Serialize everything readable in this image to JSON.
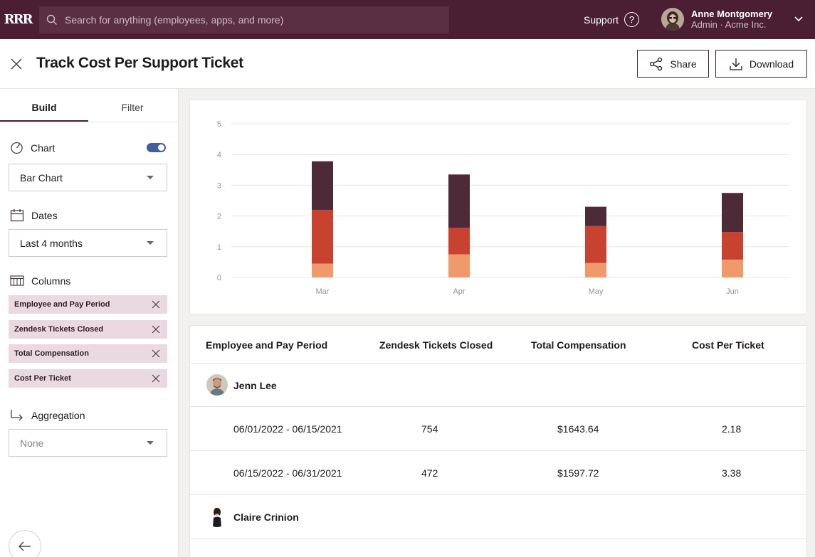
{
  "topbar": {
    "logo": "RRR",
    "search_placeholder": "Search for anything (employees, apps, and more)",
    "support_label": "Support",
    "help_icon": "?",
    "user_name": "Anne Montgomery",
    "user_role": "Admin · Acme Inc."
  },
  "header": {
    "title": "Track Cost Per Support Ticket",
    "share_label": "Share",
    "download_label": "Download"
  },
  "sidebar": {
    "tabs": [
      {
        "label": "Build"
      },
      {
        "label": "Filter"
      }
    ],
    "chart_label": "Chart",
    "chart_toggle_on": true,
    "chart_type": "Bar Chart",
    "dates_label": "Dates",
    "dates_value": "Last 4 months",
    "columns_label": "Columns",
    "columns": [
      {
        "label": "Employee and Pay Period"
      },
      {
        "label": "Zendesk Tickets Closed"
      },
      {
        "label": "Total Compensation"
      },
      {
        "label": "Cost Per Ticket"
      }
    ],
    "aggregation_label": "Aggregation",
    "aggregation_value": "None"
  },
  "colors": {
    "brand": "#4a1f34",
    "series_light": "#f0996a",
    "series_mid": "#c8432f",
    "series_dark": "#4d2a37",
    "toggle": "#3f5f9e"
  },
  "chart_data": {
    "type": "bar",
    "stacked": true,
    "categories": [
      "Mar",
      "Apr",
      "May",
      "Jun"
    ],
    "series": [
      {
        "values": [
          0.45,
          0.75,
          0.47,
          0.58
        ],
        "color": "#f0996a"
      },
      {
        "values": [
          1.75,
          0.87,
          1.2,
          0.9
        ],
        "color": "#c8432f"
      },
      {
        "values": [
          1.58,
          1.73,
          0.63,
          1.27
        ],
        "color": "#4d2a37"
      }
    ],
    "yticks": [
      0,
      1,
      2,
      3,
      4,
      5
    ],
    "ylim": [
      0,
      5
    ],
    "grid": true,
    "title": "",
    "xlabel": "",
    "ylabel": ""
  },
  "table": {
    "headers": [
      "Employee and Pay Period",
      "Zendesk Tickets Closed",
      "Total Compensation",
      "Cost Per Ticket"
    ],
    "groups": [
      {
        "name": "Jenn Lee",
        "rows": [
          {
            "period": "06/01/2022 - 06/15/2021",
            "tickets": "754",
            "comp": "$1643.64",
            "cost": "2.18"
          },
          {
            "period": "06/15/2022 - 06/31/2021",
            "tickets": "472",
            "comp": "$1597.72",
            "cost": "3.38"
          }
        ]
      },
      {
        "name": "Claire Crinion",
        "rows": []
      }
    ]
  }
}
